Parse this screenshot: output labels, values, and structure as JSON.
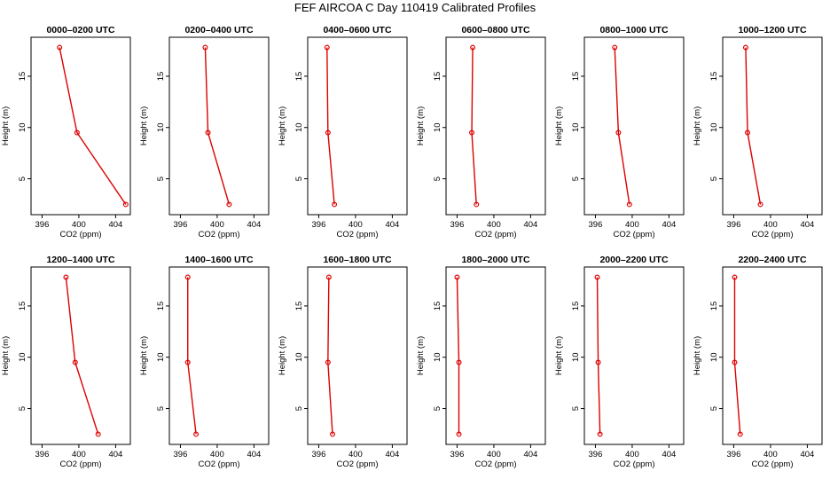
{
  "figure": {
    "title": "FEF AIRCOA C  Day 110419  Calibrated Profiles"
  },
  "chart_data": {
    "type": "line",
    "orientation": "profile",
    "xlabel": "CO2 (ppm)",
    "ylabel": "Height (m)",
    "xlim": [
      394.8,
      405.6
    ],
    "ylim": [
      1.5,
      18.8
    ],
    "xticks": [
      396,
      400,
      404
    ],
    "yticks": [
      5,
      10,
      15
    ],
    "color": "#dd0000",
    "heights": [
      2.5,
      9.5,
      17.8
    ],
    "panels": [
      {
        "title": "0000–0200 UTC",
        "co2": [
          405.1,
          399.8,
          397.9
        ]
      },
      {
        "title": "0200–0400 UTC",
        "co2": [
          401.3,
          399.0,
          398.7
        ]
      },
      {
        "title": "0400–0600 UTC",
        "co2": [
          397.7,
          397.0,
          396.9
        ]
      },
      {
        "title": "0600–0800 UTC",
        "co2": [
          398.1,
          397.6,
          397.7
        ]
      },
      {
        "title": "0800–1000 UTC",
        "co2": [
          399.7,
          398.5,
          398.1
        ]
      },
      {
        "title": "1000–1200 UTC",
        "co2": [
          398.9,
          397.5,
          397.3
        ]
      },
      {
        "title": "1200–1400 UTC",
        "co2": [
          402.1,
          399.6,
          398.6
        ]
      },
      {
        "title": "1400–1600 UTC",
        "co2": [
          397.7,
          396.8,
          396.8
        ]
      },
      {
        "title": "1600–1800 UTC",
        "co2": [
          397.5,
          397.0,
          397.1
        ]
      },
      {
        "title": "1800–2000 UTC",
        "co2": [
          396.2,
          396.2,
          396.0
        ]
      },
      {
        "title": "2000–2200 UTC",
        "co2": [
          396.5,
          396.3,
          396.2
        ]
      },
      {
        "title": "2200–2400 UTC",
        "co2": [
          396.7,
          396.1,
          396.1
        ]
      }
    ]
  }
}
